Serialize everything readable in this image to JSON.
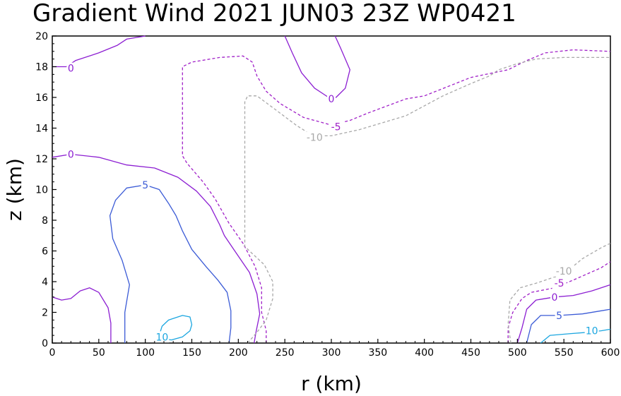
{
  "chart_data": {
    "type": "contour",
    "title": "Gradient Wind 2021 JUN03 23Z   WP0421",
    "xlabel": "r (km)",
    "ylabel": "z (km)",
    "xlim": [
      0,
      600
    ],
    "ylim": [
      0,
      20
    ],
    "xticks": [
      "0",
      "50",
      "100",
      "150",
      "200",
      "250",
      "300",
      "350",
      "400",
      "450",
      "500",
      "550",
      "600"
    ],
    "yticks": [
      "0",
      "2",
      "4",
      "6",
      "8",
      "10",
      "12",
      "14",
      "16",
      "18",
      "20"
    ],
    "grid": false,
    "colors": {
      "level_10": "#1ba6e0",
      "level_5": "#3b5bd6",
      "level_0": "#8c1ed2",
      "level_-5": "#a020c8",
      "level_-10": "#a8a8a8"
    },
    "contours": [
      {
        "level": 0,
        "label": "0",
        "style": "solid",
        "color": "#8c1ed2",
        "points": [
          [
            0,
            18.0
          ],
          [
            15,
            18.0
          ],
          [
            25,
            18.4
          ],
          [
            50,
            18.9
          ],
          [
            70,
            19.4
          ],
          [
            80,
            19.8
          ],
          [
            100,
            20.0
          ]
        ],
        "label_at": [
          20,
          17.9
        ]
      },
      {
        "level": 0,
        "label": "0",
        "style": "solid",
        "color": "#8c1ed2",
        "points": [
          [
            250,
            20.0
          ],
          [
            258,
            18.9
          ],
          [
            268,
            17.6
          ],
          [
            282,
            16.6
          ],
          [
            297,
            16.0
          ],
          [
            305,
            16.0
          ],
          [
            315,
            16.6
          ],
          [
            320,
            17.8
          ],
          [
            310,
            19.2
          ],
          [
            304,
            20.0
          ]
        ],
        "label_at": [
          300,
          15.9
        ]
      },
      {
        "level": 0,
        "label": "0",
        "style": "solid",
        "color": "#8c1ed2",
        "points": [
          [
            0,
            12.1
          ],
          [
            20,
            12.3
          ],
          [
            50,
            12.1
          ],
          [
            80,
            11.6
          ],
          [
            110,
            11.4
          ],
          [
            135,
            10.8
          ],
          [
            155,
            9.9
          ],
          [
            170,
            8.9
          ],
          [
            180,
            7.7
          ],
          [
            185,
            7.0
          ],
          [
            195,
            6.1
          ],
          [
            212,
            4.6
          ],
          [
            220,
            3.2
          ],
          [
            223,
            1.9
          ],
          [
            219,
            0.7
          ],
          [
            217,
            0
          ]
        ],
        "label_at": [
          20,
          12.3
        ]
      },
      {
        "level": 0,
        "label": "0",
        "style": "solid",
        "color": "#8c1ed2",
        "points": [
          [
            0,
            3.0
          ],
          [
            10,
            2.8
          ],
          [
            20,
            2.9
          ],
          [
            30,
            3.4
          ],
          [
            40,
            3.6
          ],
          [
            50,
            3.3
          ],
          [
            60,
            2.3
          ],
          [
            63,
            1.3
          ],
          [
            63,
            0
          ]
        ],
        "label_at": null
      },
      {
        "level": 0,
        "label": "0",
        "style": "solid",
        "color": "#8c1ed2",
        "points": [
          [
            500,
            0
          ],
          [
            505,
            1.0
          ],
          [
            510,
            2.2
          ],
          [
            520,
            2.8
          ],
          [
            540,
            3.0
          ],
          [
            560,
            3.1
          ],
          [
            580,
            3.4
          ],
          [
            600,
            3.8
          ]
        ],
        "label_at": [
          540,
          3.0
        ]
      },
      {
        "level": 5,
        "label": "5",
        "style": "solid",
        "color": "#3b5bd6",
        "points": [
          [
            78,
            0
          ],
          [
            78,
            2.0
          ],
          [
            83,
            3.8
          ],
          [
            75,
            5.4
          ],
          [
            65,
            6.8
          ],
          [
            62,
            8.3
          ],
          [
            68,
            9.3
          ],
          [
            80,
            10.1
          ],
          [
            100,
            10.3
          ],
          [
            115,
            10.0
          ],
          [
            125,
            9.1
          ],
          [
            133,
            8.3
          ],
          [
            140,
            7.3
          ],
          [
            150,
            6.1
          ],
          [
            165,
            5.0
          ],
          [
            178,
            4.1
          ],
          [
            188,
            3.3
          ],
          [
            192,
            2.1
          ],
          [
            192,
            1.0
          ],
          [
            190,
            0
          ]
        ],
        "label_at": [
          100,
          10.3
        ]
      },
      {
        "level": 5,
        "label": "5",
        "style": "solid",
        "color": "#3b5bd6",
        "points": [
          [
            510,
            0
          ],
          [
            515,
            1.2
          ],
          [
            525,
            1.8
          ],
          [
            545,
            1.8
          ],
          [
            570,
            1.9
          ],
          [
            590,
            2.1
          ],
          [
            600,
            2.2
          ]
        ],
        "label_at": [
          545,
          1.8
        ]
      },
      {
        "level": 10,
        "label": "10",
        "style": "solid",
        "color": "#1ba6e0",
        "points": [
          [
            115,
            0.5
          ],
          [
            118,
            1.1
          ],
          [
            125,
            1.5
          ],
          [
            140,
            1.8
          ],
          [
            148,
            1.7
          ],
          [
            150,
            1.2
          ],
          [
            148,
            0.8
          ],
          [
            140,
            0.4
          ],
          [
            128,
            0.2
          ],
          [
            118,
            0.3
          ],
          [
            115,
            0.5
          ]
        ],
        "label_at": [
          118,
          0.4
        ]
      },
      {
        "level": 10,
        "label": "10",
        "style": "solid",
        "color": "#1ba6e0",
        "points": [
          [
            525,
            0
          ],
          [
            535,
            0.5
          ],
          [
            555,
            0.6
          ],
          [
            575,
            0.7
          ],
          [
            590,
            0.8
          ],
          [
            600,
            0.9
          ]
        ],
        "label_at": [
          580,
          0.8
        ]
      },
      {
        "level": -5,
        "label": "-5",
        "style": "dashed",
        "color": "#a020c8",
        "points": [
          [
            230,
            0
          ],
          [
            230,
            0.8
          ],
          [
            225,
            2.0
          ],
          [
            225,
            3.6
          ],
          [
            218,
            5.0
          ],
          [
            205,
            6.5
          ],
          [
            190,
            7.8
          ],
          [
            175,
            9.4
          ],
          [
            162,
            10.5
          ],
          [
            145,
            11.7
          ],
          [
            140,
            12.2
          ],
          [
            140,
            18.0
          ],
          [
            150,
            18.3
          ],
          [
            180,
            18.6
          ],
          [
            205,
            18.7
          ],
          [
            215,
            18.3
          ],
          [
            220,
            17.4
          ],
          [
            230,
            16.4
          ],
          [
            245,
            15.6
          ],
          [
            270,
            14.7
          ],
          [
            300,
            14.2
          ],
          [
            320,
            14.5
          ],
          [
            340,
            15.0
          ],
          [
            380,
            15.9
          ],
          [
            400,
            16.1
          ],
          [
            450,
            17.3
          ],
          [
            490,
            17.8
          ],
          [
            510,
            18.4
          ],
          [
            530,
            18.9
          ],
          [
            560,
            19.1
          ],
          [
            600,
            19.0
          ]
        ],
        "label_at": [
          305,
          14.1
        ]
      },
      {
        "level": -5,
        "label": "-5",
        "style": "dashed",
        "color": "#a020c8",
        "points": [
          [
            490,
            0
          ],
          [
            490,
            1.0
          ],
          [
            495,
            2.0
          ],
          [
            505,
            2.9
          ],
          [
            515,
            3.3
          ],
          [
            540,
            3.6
          ],
          [
            560,
            4.1
          ],
          [
            590,
            4.9
          ],
          [
            600,
            5.3
          ]
        ],
        "label_at": [
          545,
          3.9
        ]
      },
      {
        "level": -10,
        "label": "-10",
        "style": "dashed",
        "color": "#a8a8a8",
        "points": [
          [
            210,
            0
          ],
          [
            220,
            0.7
          ],
          [
            230,
            1.5
          ],
          [
            237,
            2.9
          ],
          [
            237,
            4.0
          ],
          [
            228,
            5.1
          ],
          [
            212,
            6.0
          ],
          [
            207,
            6.3
          ],
          [
            207,
            15.7
          ],
          [
            210,
            16.1
          ],
          [
            220,
            16.1
          ],
          [
            240,
            15.2
          ],
          [
            262,
            14.2
          ],
          [
            280,
            13.5
          ],
          [
            300,
            13.5
          ],
          [
            330,
            13.9
          ],
          [
            380,
            14.8
          ],
          [
            420,
            16.1
          ],
          [
            450,
            16.9
          ],
          [
            470,
            17.4
          ],
          [
            480,
            17.8
          ],
          [
            500,
            18.2
          ],
          [
            520,
            18.5
          ],
          [
            550,
            18.6
          ],
          [
            600,
            18.6
          ]
        ],
        "label_at": [
          282,
          13.4
        ]
      },
      {
        "level": -10,
        "label": "-10",
        "style": "dashed",
        "color": "#a8a8a8",
        "points": [
          [
            493,
            0
          ],
          [
            490,
            1.2
          ],
          [
            492,
            2.8
          ],
          [
            503,
            3.6
          ],
          [
            520,
            3.9
          ],
          [
            550,
            4.5
          ],
          [
            570,
            5.5
          ],
          [
            590,
            6.2
          ],
          [
            600,
            6.5
          ]
        ],
        "label_at": [
          550,
          4.7
        ]
      }
    ]
  }
}
